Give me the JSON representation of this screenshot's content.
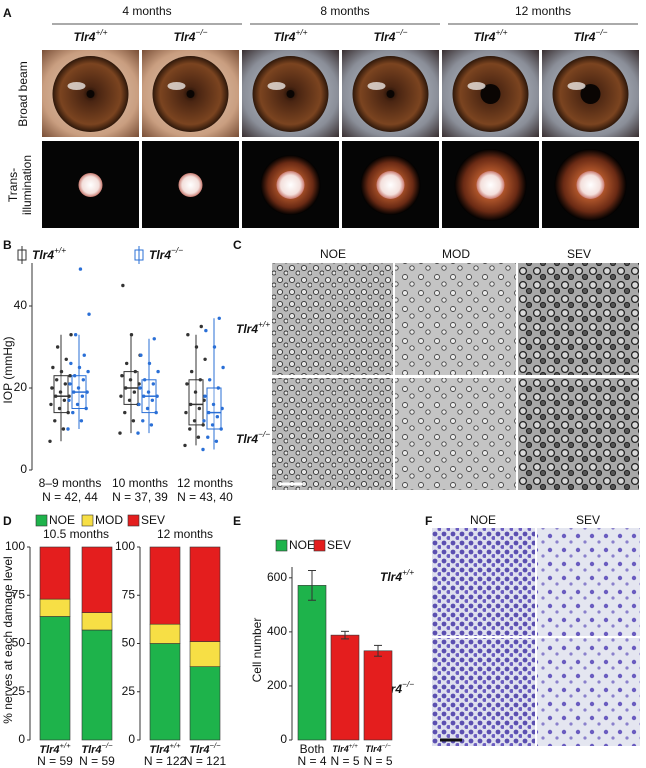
{
  "panel_labels": [
    "A",
    "B",
    "C",
    "D",
    "E",
    "F"
  ],
  "genotypes": [
    {
      "text": "Tlr4",
      "sup": "+/+"
    },
    {
      "text": "Tlr4",
      "sup": "−/−"
    }
  ],
  "panel_a": {
    "ages": [
      "4 months",
      "8 months",
      "12 months"
    ],
    "rows": [
      "Broad beam",
      [
        "Trans-",
        "illumination"
      ]
    ]
  },
  "panel_c": {
    "columns": [
      "NOE",
      "MOD",
      "SEV"
    ]
  },
  "panel_f": {
    "columns": [
      "NOE",
      "SEV"
    ]
  },
  "chart_data": [
    {
      "type": "box",
      "ylabel": "IOP (mmHg)",
      "ylim": [
        0,
        50
      ],
      "yticks": [
        0,
        20,
        40
      ],
      "categories": [
        "8–9 months",
        "10 months",
        "12 months"
      ],
      "category_notes": [
        "N = 42, 44",
        "N = 37, 39",
        "N = 43, 40"
      ],
      "series": [
        {
          "name": {
            "text": "Tlr4",
            "sup": "+/+"
          },
          "color": "#333333",
          "boxes": [
            {
              "whisker_low": 7,
              "q1": 14,
              "median": 18,
              "q3": 23,
              "whisker_high": 33
            },
            {
              "whisker_low": 9,
              "q1": 16,
              "median": 20,
              "q3": 24,
              "whisker_high": 33
            },
            {
              "whisker_low": 6,
              "q1": 11,
              "median": 16,
              "q3": 22,
              "whisker_high": 33
            }
          ],
          "points": [
            [
              7,
              10,
              12,
              14,
              15,
              16,
              17,
              18,
              18,
              19,
              20,
              21,
              22,
              23,
              24,
              25,
              27,
              30,
              33
            ],
            [
              9,
              12,
              14,
              16,
              17,
              18,
              19,
              20,
              21,
              22,
              23,
              24,
              26,
              28,
              33,
              45
            ],
            [
              6,
              8,
              10,
              11,
              12,
              14,
              15,
              16,
              17,
              19,
              21,
              22,
              24,
              27,
              30,
              33,
              35
            ]
          ]
        },
        {
          "name": {
            "text": "Tlr4",
            "sup": "−/−"
          },
          "color": "#2a6fd6",
          "boxes": [
            {
              "whisker_low": 10,
              "q1": 15,
              "median": 19,
              "q3": 23,
              "whisker_high": 33
            },
            {
              "whisker_low": 9,
              "q1": 14,
              "median": 18,
              "q3": 22,
              "whisker_high": 32
            },
            {
              "whisker_low": 5,
              "q1": 10,
              "median": 14,
              "q3": 20,
              "whisker_high": 37
            }
          ],
          "points": [
            [
              10,
              12,
              14,
              15,
              16,
              17,
              18,
              19,
              19,
              20,
              21,
              22,
              23,
              24,
              25,
              26,
              28,
              33,
              38,
              49
            ],
            [
              9,
              11,
              12,
              14,
              15,
              16,
              17,
              18,
              18,
              19,
              20,
              21,
              22,
              24,
              26,
              28,
              32
            ],
            [
              5,
              7,
              8,
              10,
              11,
              12,
              13,
              14,
              15,
              16,
              18,
              20,
              22,
              25,
              30,
              34,
              37
            ]
          ]
        }
      ]
    },
    {
      "type": "stacked_bar",
      "ylabel": "% nerves at each damage level",
      "ylim": [
        0,
        100
      ],
      "yticks": [
        0,
        25,
        50,
        75,
        100
      ],
      "legend": [
        {
          "name": "NOE",
          "color": "#1eb34b"
        },
        {
          "name": "MOD",
          "color": "#f7df45"
        },
        {
          "name": "SEV",
          "color": "#e41e1e"
        }
      ],
      "groups": [
        {
          "title": "10.5 months",
          "categories": [
            {
              "text": "Tlr4",
              "sup": "+/+"
            },
            {
              "text": "Tlr4",
              "sup": "−/−"
            }
          ],
          "notes": [
            "N = 59",
            "N = 59"
          ],
          "values": [
            [
              64,
              9,
              27
            ],
            [
              57,
              9,
              34
            ]
          ]
        },
        {
          "title": "12 months",
          "categories": [
            {
              "text": "Tlr4",
              "sup": "+/+"
            },
            {
              "text": "Tlr4",
              "sup": "−/−"
            }
          ],
          "notes": [
            "N = 122",
            "N = 121"
          ],
          "values": [
            [
              50,
              10,
              40
            ],
            [
              38,
              13,
              49
            ]
          ]
        }
      ]
    },
    {
      "type": "bar",
      "ylabel": "Cell number",
      "ylim": [
        0,
        640
      ],
      "yticks": [
        0,
        200,
        400,
        600
      ],
      "legend": [
        {
          "name": "NOE",
          "color": "#1eb34b"
        },
        {
          "name": "SEV",
          "color": "#e41e1e"
        }
      ],
      "categories": [
        "Both",
        {
          "text": "Tlr4",
          "sup": "+/+"
        },
        {
          "text": "Tlr4",
          "sup": "−/−"
        }
      ],
      "category_notes": [
        "N = 4",
        "N = 5",
        "N = 5"
      ],
      "values": [
        572,
        388,
        330
      ],
      "errors": [
        55,
        14,
        20
      ],
      "colors": [
        "#1eb34b",
        "#e41e1e",
        "#e41e1e"
      ]
    }
  ]
}
